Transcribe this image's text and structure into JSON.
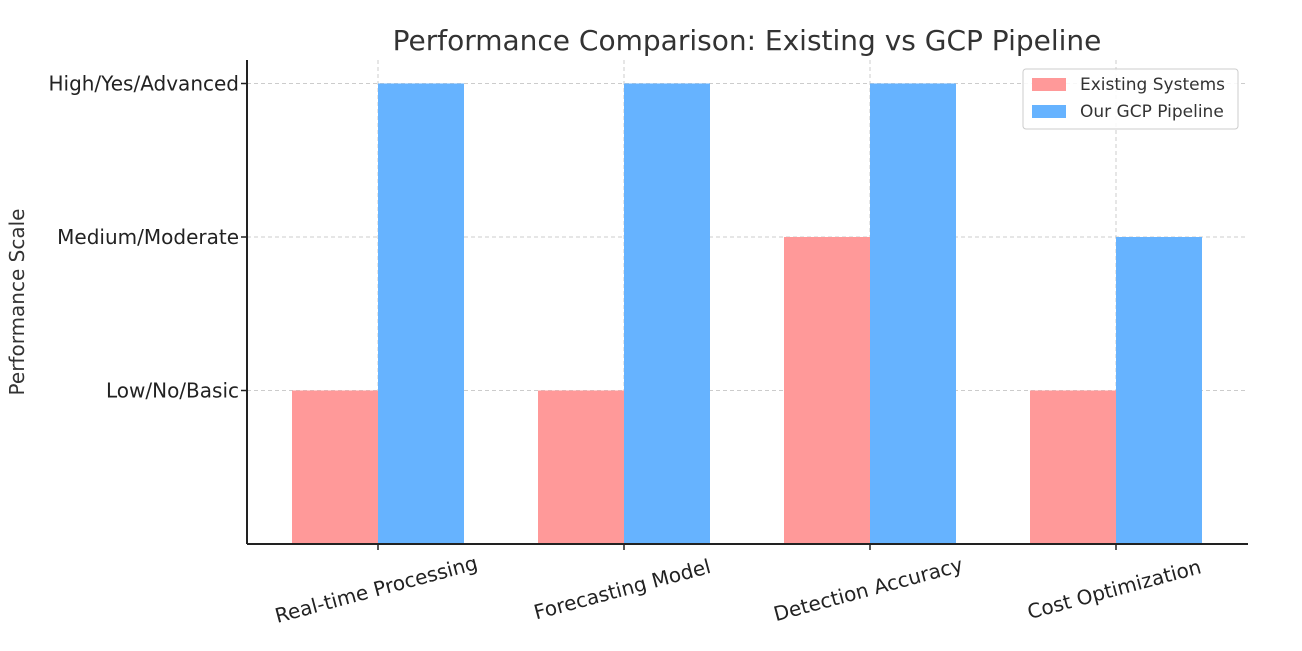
{
  "chart_data": {
    "type": "bar",
    "title": "Performance Comparison: Existing vs GCP Pipeline",
    "xlabel": "",
    "ylabel": "Performance Scale",
    "categories": [
      "Real-time Processing",
      "Forecasting Model",
      "Detection Accuracy",
      "Cost Optimization"
    ],
    "series": [
      {
        "name": "Existing Systems",
        "color": "#ff9999",
        "values": [
          1,
          1,
          2,
          1
        ]
      },
      {
        "name": "Our GCP Pipeline",
        "color": "#66b3ff",
        "values": [
          3,
          3,
          3,
          2
        ]
      }
    ],
    "yticks": [
      {
        "value": 1,
        "label": "Low/No/Basic"
      },
      {
        "value": 2,
        "label": "Medium/Moderate"
      },
      {
        "value": 3,
        "label": "High/Yes/Advanced"
      }
    ],
    "ylim": [
      0,
      3.15
    ],
    "grid": true,
    "legend_position": "top-right"
  }
}
